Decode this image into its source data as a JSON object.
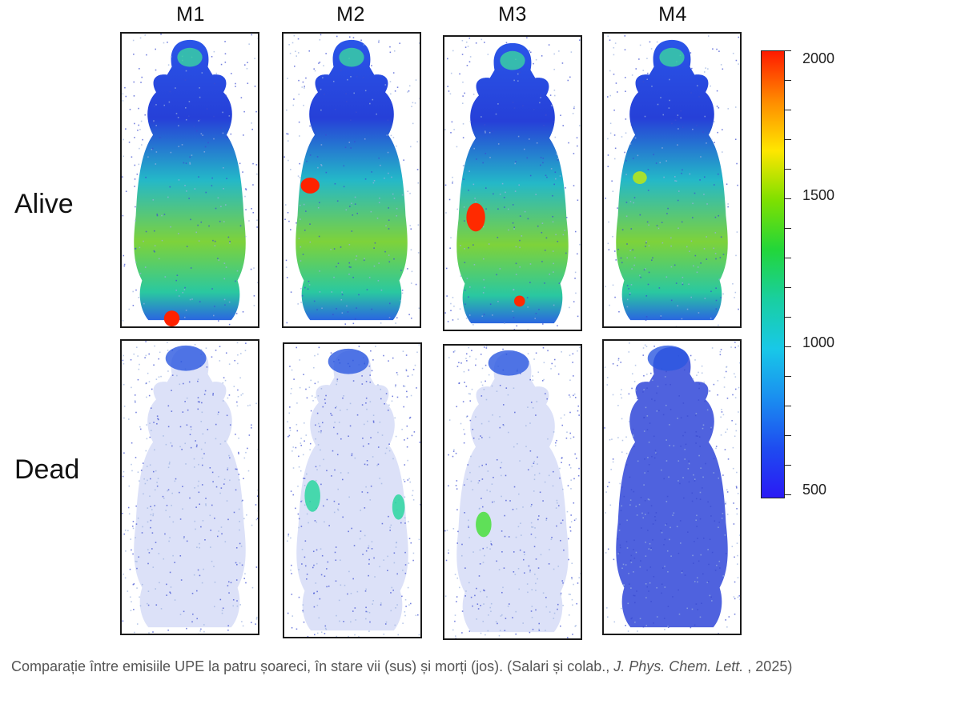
{
  "figure": {
    "columns": [
      "M1",
      "M2",
      "M3",
      "M4"
    ],
    "rows": [
      "Alive",
      "Dead"
    ],
    "colorbar": {
      "labels": [
        "2000",
        "1500",
        "1000",
        "500"
      ],
      "gradient": [
        "#ff1a00",
        "#ff8a00",
        "#ffe600",
        "#7fe000",
        "#22d63a",
        "#19cfa0",
        "#18c8e8",
        "#1a8ef0",
        "#1e4cf0",
        "#2a1af5"
      ]
    }
  },
  "caption": {
    "text_before": "Comparație între emisiile UPE la patru șoareci, în stare vii (sus) și morți (jos). (Salari și colab., ",
    "journal": "J. Phys. Chem. Lett.",
    "text_after": " , 2025)"
  }
}
